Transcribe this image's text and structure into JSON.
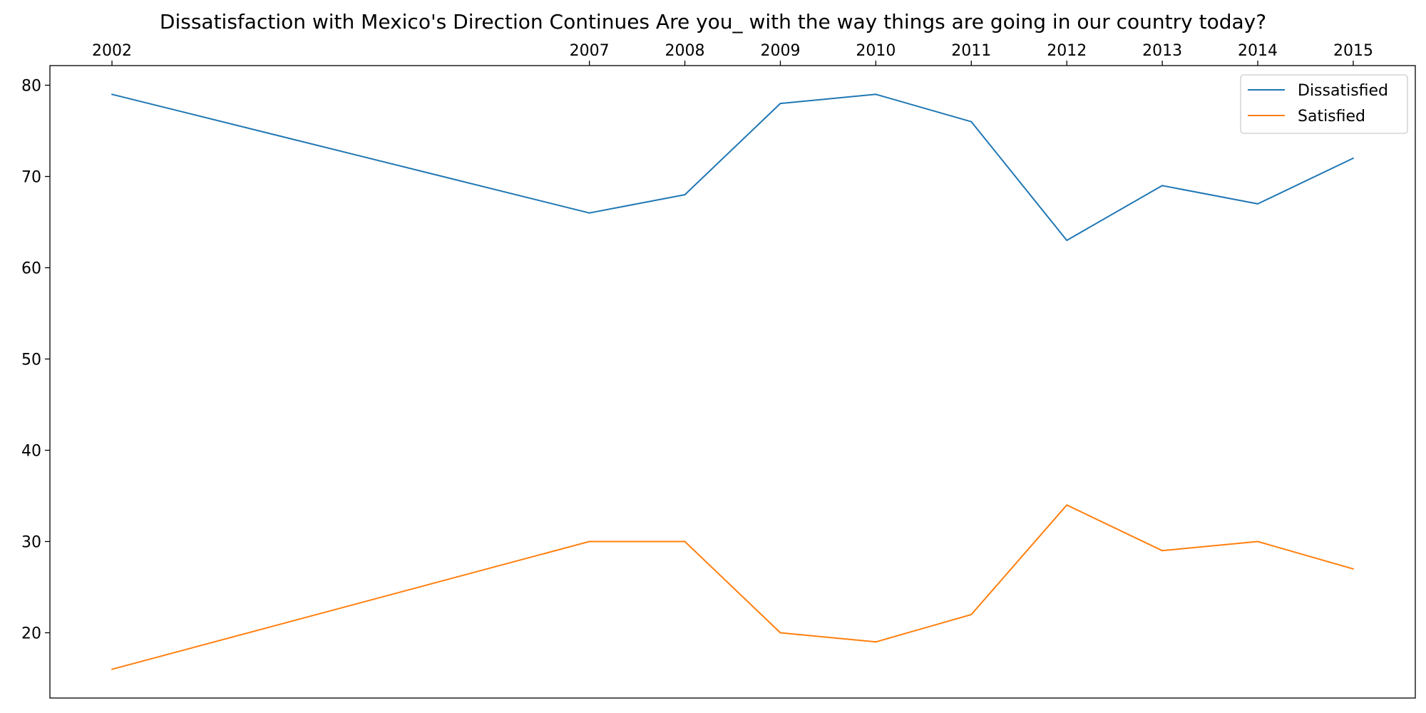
{
  "chart_data": {
    "type": "line",
    "title": "Dissatisfaction with Mexico's Direction Continues Are you_ with the way things are going in our country today?",
    "xlabel": "",
    "ylabel": "",
    "x": [
      2002,
      2007,
      2008,
      2009,
      2010,
      2011,
      2012,
      2013,
      2014,
      2015
    ],
    "x_tick_labels": [
      "2002",
      "2007",
      "2008",
      "2009",
      "2010",
      "2011",
      "2012",
      "2013",
      "2014",
      "2015"
    ],
    "x_axis_position": "top",
    "y_ticks": [
      20,
      30,
      40,
      50,
      60,
      70,
      80
    ],
    "y_tick_labels": [
      "20",
      "30",
      "40",
      "50",
      "60",
      "70",
      "80"
    ],
    "xlim": [
      2001.35,
      2015.65
    ],
    "ylim": [
      12.85,
      82.15
    ],
    "grid": false,
    "legend_position": "top-right",
    "series": [
      {
        "name": "Dissatisfied",
        "color": "#1f77b4",
        "values": [
          79,
          66,
          68,
          78,
          79,
          76,
          63,
          69,
          67,
          72
        ]
      },
      {
        "name": "Satisfied",
        "color": "#ff7f0e",
        "values": [
          16,
          30,
          30,
          20,
          19,
          22,
          34,
          29,
          30,
          27
        ]
      }
    ]
  }
}
